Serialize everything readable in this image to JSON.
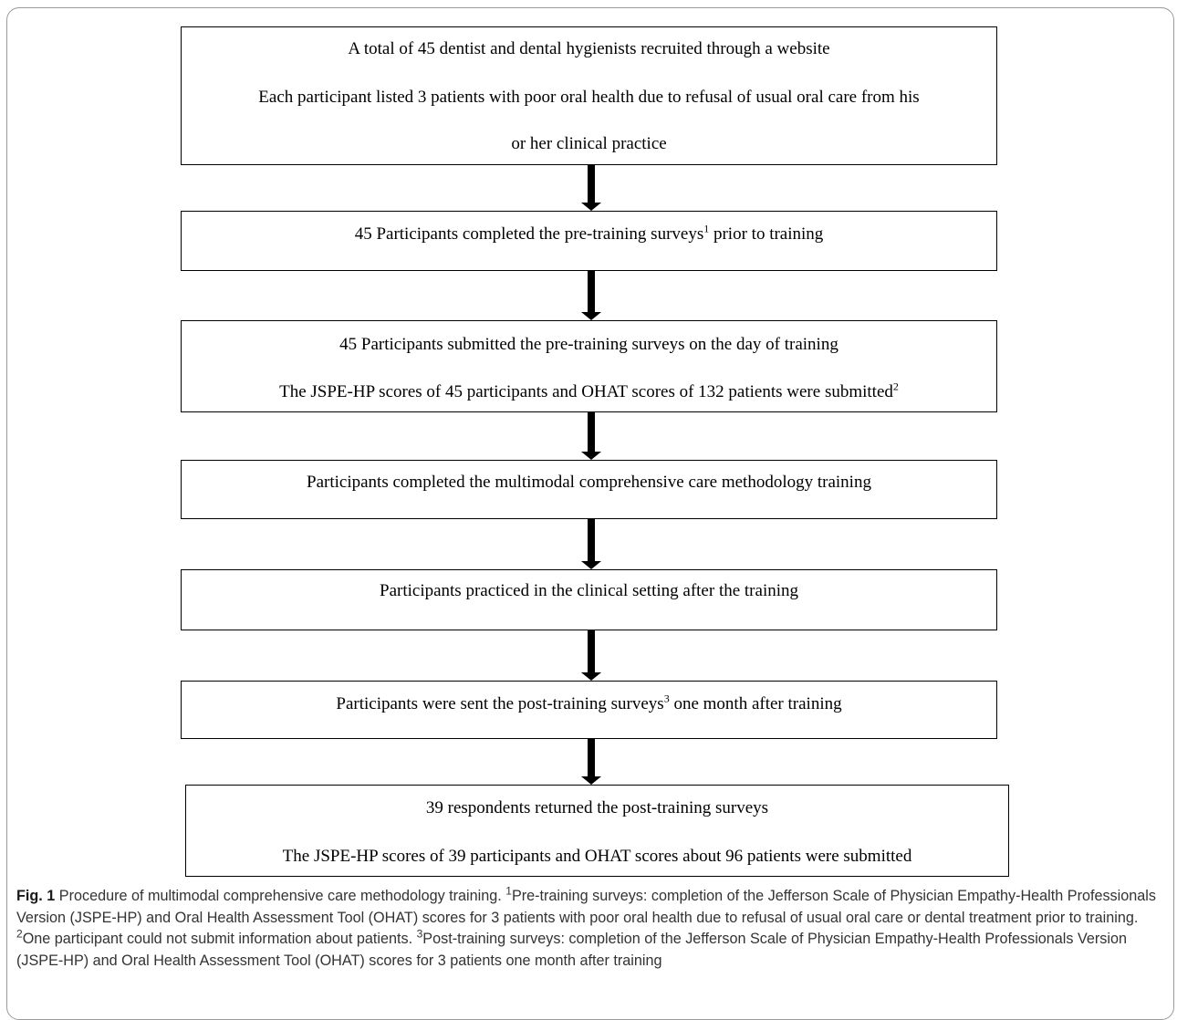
{
  "boxes": [
    {
      "lines": [
        {
          "text": "A total of 45 dentist and dental hygienists recruited through a website"
        },
        {
          "text": "Each participant listed 3 patients with poor oral health due to refusal of usual oral care from his"
        },
        {
          "text": "or her clinical practice"
        }
      ]
    },
    {
      "lines": [
        {
          "text": "45 Participants completed the pre-training surveys",
          "sup": "1",
          "after": " prior to training"
        }
      ]
    },
    {
      "lines": [
        {
          "text": "45 Participants submitted the pre-training surveys on the day of training"
        },
        {
          "text": "The JSPE-HP scores of 45 participants and OHAT scores of 132 patients were submitted",
          "sup": "2",
          "after": ""
        }
      ]
    },
    {
      "lines": [
        {
          "text": "Participants completed the multimodal comprehensive care methodology training"
        }
      ]
    },
    {
      "lines": [
        {
          "text": "Participants practiced in the clinical setting after the training"
        }
      ]
    },
    {
      "lines": [
        {
          "text": "Participants were sent the post-training surveys",
          "sup": "3",
          "after": " one month after training"
        }
      ]
    },
    {
      "lines": [
        {
          "text": "39 respondents returned the post-training surveys"
        },
        {
          "text": "The JSPE-HP scores of 39 participants and OHAT scores about 96 patients were submitted"
        }
      ]
    }
  ],
  "caption": {
    "label": "Fig. 1",
    "text": " Procedure of multimodal comprehensive care methodology training. ",
    "fn1_mark": "1",
    "fn1_text": "Pre-training surveys: completion of the Jefferson Scale of Physician Empathy-Health Professionals Version (JSPE-HP) and Oral Health Assessment Tool (OHAT) scores for 3 patients with poor oral health due to refusal of usual oral care or dental treatment prior to training. ",
    "fn2_mark": "2",
    "fn2_text": "One participant could not submit information about patients. ",
    "fn3_mark": "3",
    "fn3_text": "Post-training surveys: completion of the Jefferson Scale of Physician Empathy-Health Professionals Version (JSPE-HP) and Oral Health Assessment Tool (OHAT) scores for 3 patients one month after training"
  }
}
